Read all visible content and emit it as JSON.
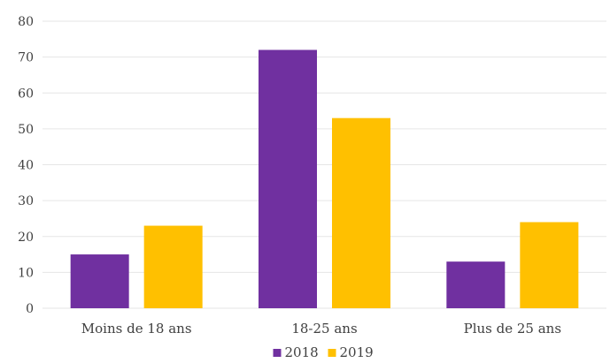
{
  "chart_data": {
    "type": "bar",
    "title": "",
    "xlabel": "",
    "ylabel": "",
    "categories": [
      "Moins de 18 ans",
      "18-25 ans",
      "Plus de 25 ans"
    ],
    "series": [
      {
        "name": "2018",
        "color": "#7030a0",
        "values": [
          15,
          72,
          13
        ]
      },
      {
        "name": "2019",
        "color": "#ffc000",
        "values": [
          23,
          53,
          24
        ]
      }
    ],
    "ylim": [
      0,
      80
    ],
    "yticks": [
      0,
      10,
      20,
      30,
      40,
      50,
      60,
      70,
      80
    ],
    "grid": true,
    "legend_position": "bottom-center"
  },
  "colors": {
    "gridline": "#e6e6e6",
    "axis_text": "#404040"
  }
}
